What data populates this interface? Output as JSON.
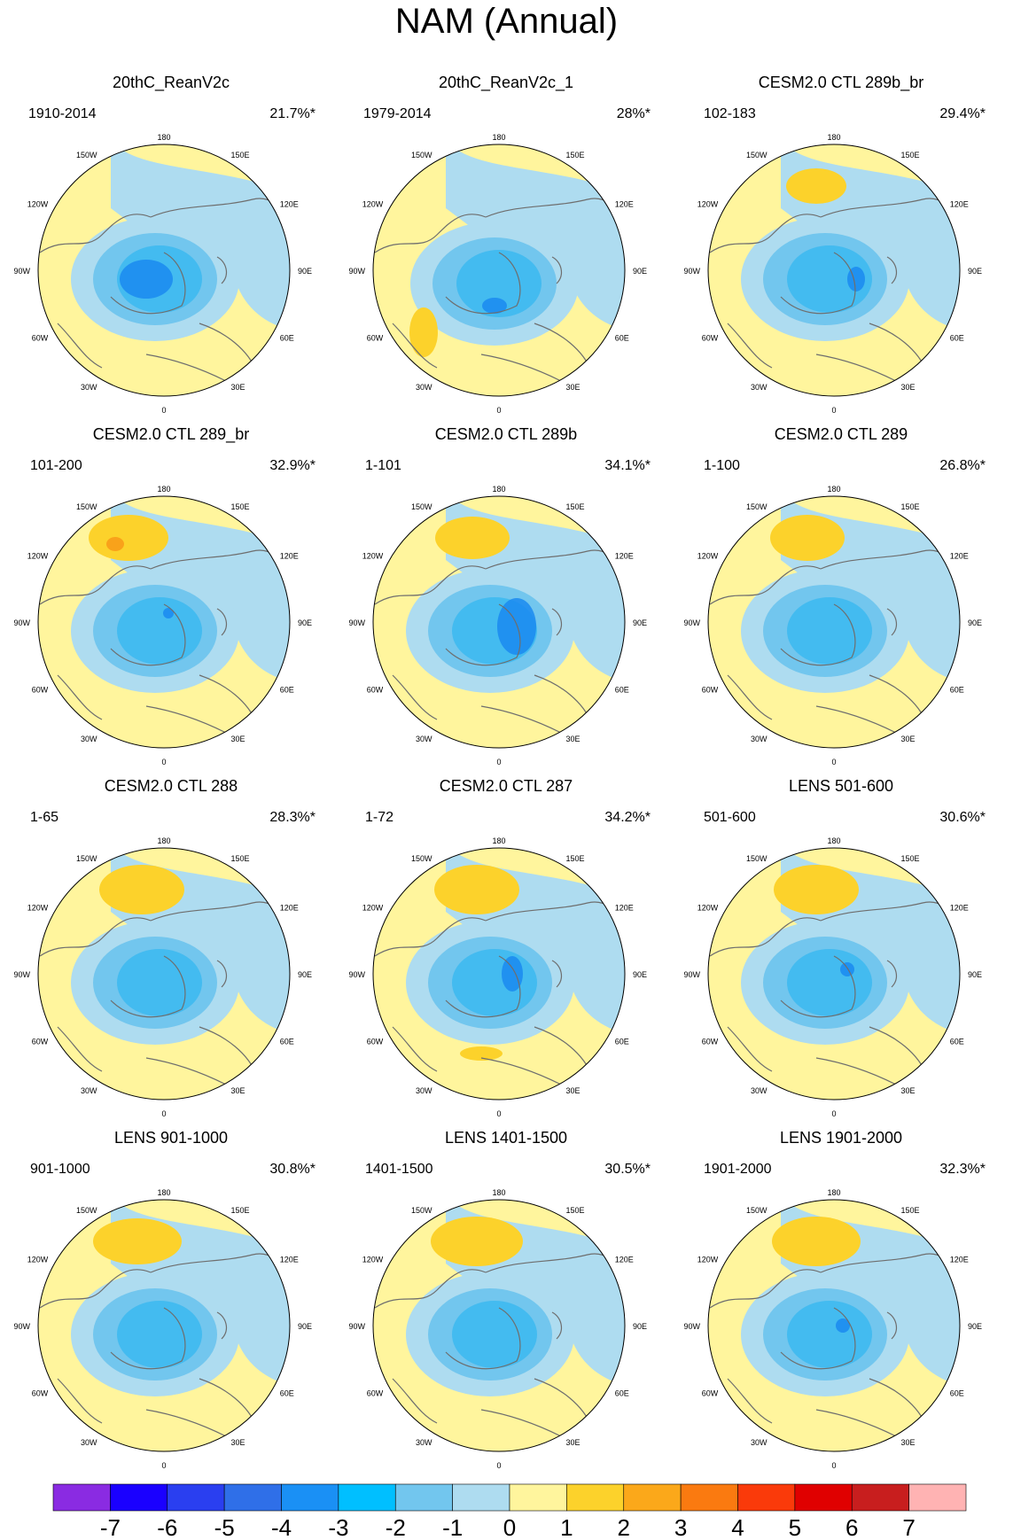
{
  "title": "NAM (Annual)",
  "longitude_labels": [
    "180",
    "150E",
    "120E",
    "90E",
    "60E",
    "30E",
    "0",
    "30W",
    "60W",
    "90W",
    "120W",
    "150W"
  ],
  "colors": {
    "land_outline": "#6e6e6e",
    "circle_border": "#000000",
    "neg1": "#aedcf0",
    "neg2": "#72c6ee",
    "neg3": "#34b7f0",
    "neg4": "#1a8af0",
    "pos0": "#fff59d",
    "pos1": "#fcd22b",
    "pos2": "#f9a21a"
  },
  "panels": [
    {
      "title": "20thC_ReanV2c",
      "period": "1910-2014",
      "variance": "21.7%*"
    },
    {
      "title": "20thC_ReanV2c_1",
      "period": "1979-2014",
      "variance": "28%*"
    },
    {
      "title": "CESM2.0 CTL 289b_br",
      "period": "102-183",
      "variance": "29.4%*"
    },
    {
      "title": "CESM2.0 CTL 289_br",
      "period": "101-200",
      "variance": "32.9%*"
    },
    {
      "title": "CESM2.0 CTL 289b",
      "period": "1-101",
      "variance": "34.1%*"
    },
    {
      "title": "CESM2.0 CTL 289",
      "period": "1-100",
      "variance": "26.8%*"
    },
    {
      "title": "CESM2.0 CTL 288",
      "period": "1-65",
      "variance": "28.3%*"
    },
    {
      "title": "CESM2.0 CTL 287",
      "period": "1-72",
      "variance": "34.2%*"
    },
    {
      "title": "LENS 501-600",
      "period": "501-600",
      "variance": "30.6%*"
    },
    {
      "title": "LENS 901-1000",
      "period": "901-1000",
      "variance": "30.8%*"
    },
    {
      "title": "LENS 1401-1500",
      "period": "1401-1500",
      "variance": "30.5%*"
    },
    {
      "title": "LENS 1901-2000",
      "period": "1901-2000",
      "variance": "32.3%*"
    }
  ],
  "colorbar": {
    "labels": [
      "-7",
      "-6",
      "-5",
      "-4",
      "-3",
      "-2",
      "-1",
      "0",
      "1",
      "2",
      "3",
      "4",
      "5",
      "6",
      "7"
    ],
    "colors": [
      "#8a2be2",
      "#1a00ff",
      "#2a3ff0",
      "#2f6fe8",
      "#1a90f5",
      "#00bfff",
      "#72c6ee",
      "#aedcf0",
      "#fff59d",
      "#fcd22b",
      "#fba81a",
      "#fa7a10",
      "#fa3a0a",
      "#e00000",
      "#c81e1e",
      "#ffb3b3"
    ]
  }
}
